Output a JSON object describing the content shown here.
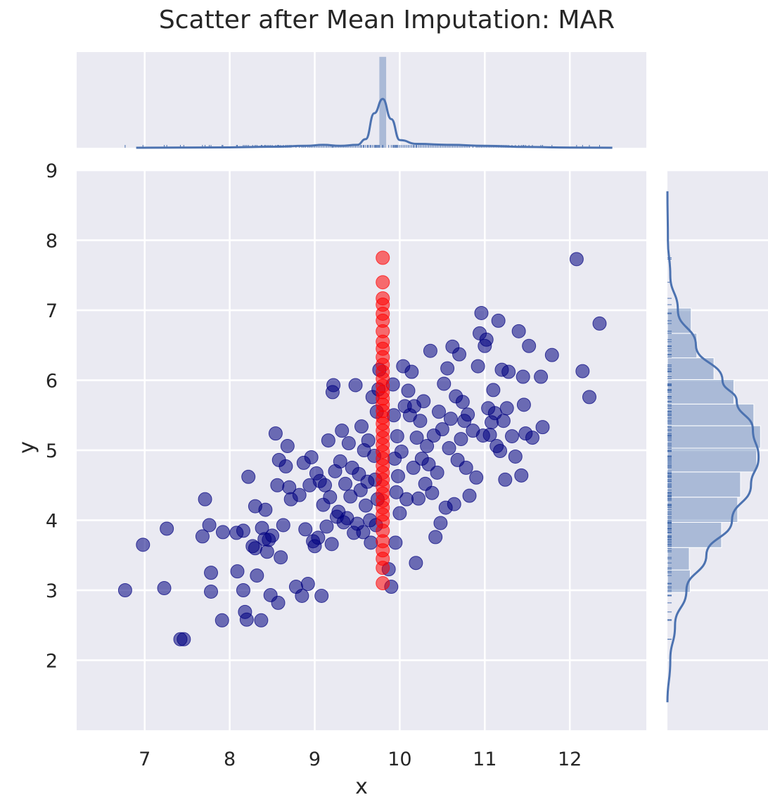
{
  "chart_data": {
    "type": "scatter",
    "title": "Scatter after Mean Imputation: MAR",
    "xlabel": "x",
    "ylabel": "y",
    "xlim": [
      6.2,
      12.9
    ],
    "ylim": [
      1.0,
      9.0
    ],
    "xticks": [
      7,
      8,
      9,
      10,
      11,
      12
    ],
    "yticks": [
      2,
      3,
      4,
      5,
      6,
      7,
      8,
      9
    ],
    "grid": true,
    "imputed_x": 9.8,
    "colors": {
      "observed": "#00007f",
      "imputed": "#ff0000",
      "marginal": "#4c72b0",
      "background": "#eaeaf2",
      "grid": "#ffffff"
    },
    "series": [
      {
        "role": "observed",
        "color": "#00007f",
        "points": [
          [
            6.77,
            3.0
          ],
          [
            6.98,
            3.65
          ],
          [
            7.23,
            3.03
          ],
          [
            7.26,
            3.88
          ],
          [
            7.42,
            2.3
          ],
          [
            7.46,
            2.3
          ],
          [
            7.68,
            3.77
          ],
          [
            7.71,
            4.3
          ],
          [
            7.76,
            3.93
          ],
          [
            7.78,
            3.25
          ],
          [
            7.78,
            2.98
          ],
          [
            7.91,
            2.57
          ],
          [
            7.92,
            3.83
          ],
          [
            8.08,
            3.82
          ],
          [
            8.09,
            3.27
          ],
          [
            8.16,
            3.85
          ],
          [
            8.16,
            3.0
          ],
          [
            8.18,
            2.69
          ],
          [
            8.2,
            2.58
          ],
          [
            8.22,
            4.62
          ],
          [
            8.27,
            3.63
          ],
          [
            8.3,
            3.6
          ],
          [
            8.3,
            4.2
          ],
          [
            8.32,
            3.21
          ],
          [
            8.37,
            2.57
          ],
          [
            8.38,
            3.89
          ],
          [
            8.41,
            3.73
          ],
          [
            8.42,
            4.15
          ],
          [
            8.44,
            3.55
          ],
          [
            8.46,
            3.72
          ],
          [
            8.48,
            2.93
          ],
          [
            8.5,
            3.78
          ],
          [
            8.54,
            5.24
          ],
          [
            8.56,
            4.5
          ],
          [
            8.57,
            2.82
          ],
          [
            8.58,
            4.86
          ],
          [
            8.6,
            3.47
          ],
          [
            8.63,
            3.93
          ],
          [
            8.66,
            4.77
          ],
          [
            8.68,
            5.06
          ],
          [
            8.7,
            4.47
          ],
          [
            8.72,
            4.3
          ],
          [
            8.78,
            3.05
          ],
          [
            8.82,
            4.36
          ],
          [
            8.85,
            2.92
          ],
          [
            8.87,
            4.82
          ],
          [
            8.89,
            3.87
          ],
          [
            8.92,
            3.09
          ],
          [
            8.94,
            4.5
          ],
          [
            8.96,
            4.9
          ],
          [
            8.98,
            3.7
          ],
          [
            9.0,
            3.63
          ],
          [
            9.02,
            4.67
          ],
          [
            9.04,
            3.75
          ],
          [
            9.06,
            4.56
          ],
          [
            9.08,
            2.92
          ],
          [
            9.1,
            4.22
          ],
          [
            9.12,
            4.5
          ],
          [
            9.14,
            3.91
          ],
          [
            9.16,
            5.14
          ],
          [
            9.18,
            4.33
          ],
          [
            9.2,
            3.66
          ],
          [
            9.21,
            5.83
          ],
          [
            9.22,
            5.93
          ],
          [
            9.24,
            4.7
          ],
          [
            9.26,
            4.05
          ],
          [
            9.28,
            4.12
          ],
          [
            9.3,
            4.84
          ],
          [
            9.32,
            5.28
          ],
          [
            9.34,
            3.97
          ],
          [
            9.36,
            4.52
          ],
          [
            9.38,
            4.03
          ],
          [
            9.4,
            5.1
          ],
          [
            9.42,
            4.34
          ],
          [
            9.44,
            4.75
          ],
          [
            9.46,
            3.82
          ],
          [
            9.48,
            5.93
          ],
          [
            9.5,
            3.95
          ],
          [
            9.52,
            4.66
          ],
          [
            9.54,
            4.43
          ],
          [
            9.55,
            5.34
          ],
          [
            9.57,
            3.83
          ],
          [
            9.58,
            5.0
          ],
          [
            9.6,
            4.21
          ],
          [
            9.62,
            4.55
          ],
          [
            9.63,
            5.14
          ],
          [
            9.65,
            4.0
          ],
          [
            9.66,
            3.68
          ],
          [
            9.68,
            5.76
          ],
          [
            9.7,
            4.92
          ],
          [
            9.71,
            4.58
          ],
          [
            9.72,
            3.93
          ],
          [
            9.73,
            5.55
          ],
          [
            9.74,
            4.3
          ],
          [
            9.75,
            5.87
          ],
          [
            9.76,
            6.15
          ],
          [
            9.87,
            3.3
          ],
          [
            9.9,
            3.05
          ],
          [
            9.92,
            5.94
          ],
          [
            9.93,
            5.5
          ],
          [
            9.94,
            4.88
          ],
          [
            9.95,
            3.68
          ],
          [
            9.96,
            4.4
          ],
          [
            9.97,
            5.2
          ],
          [
            9.98,
            4.63
          ],
          [
            10.0,
            4.1
          ],
          [
            10.02,
            4.98
          ],
          [
            10.04,
            6.2
          ],
          [
            10.06,
            5.63
          ],
          [
            10.08,
            4.3
          ],
          [
            10.1,
            5.85
          ],
          [
            10.12,
            5.5
          ],
          [
            10.14,
            6.12
          ],
          [
            10.16,
            4.75
          ],
          [
            10.17,
            5.63
          ],
          [
            10.19,
            3.39
          ],
          [
            10.2,
            5.18
          ],
          [
            10.22,
            4.31
          ],
          [
            10.24,
            5.42
          ],
          [
            10.26,
            4.88
          ],
          [
            10.28,
            5.7
          ],
          [
            10.3,
            4.52
          ],
          [
            10.32,
            5.06
          ],
          [
            10.34,
            4.8
          ],
          [
            10.36,
            6.42
          ],
          [
            10.38,
            4.39
          ],
          [
            10.4,
            5.21
          ],
          [
            10.42,
            3.76
          ],
          [
            10.44,
            4.68
          ],
          [
            10.46,
            5.55
          ],
          [
            10.48,
            3.96
          ],
          [
            10.5,
            5.3
          ],
          [
            10.52,
            5.95
          ],
          [
            10.54,
            4.18
          ],
          [
            10.56,
            6.17
          ],
          [
            10.58,
            5.03
          ],
          [
            10.6,
            5.45
          ],
          [
            10.62,
            6.48
          ],
          [
            10.64,
            4.23
          ],
          [
            10.66,
            5.77
          ],
          [
            10.68,
            4.86
          ],
          [
            10.7,
            6.37
          ],
          [
            10.72,
            5.16
          ],
          [
            10.74,
            5.69
          ],
          [
            10.76,
            5.42
          ],
          [
            10.78,
            4.75
          ],
          [
            10.8,
            5.51
          ],
          [
            10.82,
            4.35
          ],
          [
            10.86,
            5.28
          ],
          [
            10.9,
            4.61
          ],
          [
            10.92,
            6.2
          ],
          [
            10.94,
            6.67
          ],
          [
            10.96,
            6.96
          ],
          [
            10.98,
            5.21
          ],
          [
            11.0,
            6.49
          ],
          [
            11.02,
            6.58
          ],
          [
            11.04,
            5.6
          ],
          [
            11.06,
            5.22
          ],
          [
            11.08,
            5.4
          ],
          [
            11.1,
            5.86
          ],
          [
            11.12,
            5.53
          ],
          [
            11.14,
            5.06
          ],
          [
            11.16,
            6.85
          ],
          [
            11.18,
            4.99
          ],
          [
            11.2,
            6.15
          ],
          [
            11.22,
            5.42
          ],
          [
            11.24,
            4.58
          ],
          [
            11.26,
            5.6
          ],
          [
            11.28,
            6.12
          ],
          [
            11.32,
            5.2
          ],
          [
            11.36,
            4.91
          ],
          [
            11.4,
            6.7
          ],
          [
            11.43,
            4.64
          ],
          [
            11.45,
            6.05
          ],
          [
            11.46,
            5.65
          ],
          [
            11.48,
            5.24
          ],
          [
            11.52,
            6.49
          ],
          [
            11.56,
            5.18
          ],
          [
            11.66,
            6.05
          ],
          [
            11.68,
            5.33
          ],
          [
            11.79,
            6.36
          ],
          [
            12.08,
            7.73
          ],
          [
            12.15,
            6.13
          ],
          [
            12.23,
            5.76
          ],
          [
            12.35,
            6.81
          ]
        ]
      },
      {
        "role": "imputed",
        "color": "#ff0000",
        "points": [
          [
            9.8,
            7.75
          ],
          [
            9.8,
            7.4
          ],
          [
            9.8,
            7.17
          ],
          [
            9.8,
            7.08
          ],
          [
            9.8,
            6.95
          ],
          [
            9.8,
            6.85
          ],
          [
            9.8,
            6.7
          ],
          [
            9.8,
            6.55
          ],
          [
            9.8,
            6.45
          ],
          [
            9.8,
            6.33
          ],
          [
            9.8,
            6.22
          ],
          [
            9.8,
            6.12
          ],
          [
            9.8,
            6.02
          ],
          [
            9.8,
            5.92
          ],
          [
            9.8,
            5.83
          ],
          [
            9.8,
            5.74
          ],
          [
            9.8,
            5.65
          ],
          [
            9.8,
            5.56
          ],
          [
            9.8,
            5.47
          ],
          [
            9.8,
            5.38
          ],
          [
            9.8,
            5.28
          ],
          [
            9.8,
            5.18
          ],
          [
            9.8,
            5.08
          ],
          [
            9.8,
            4.98
          ],
          [
            9.8,
            4.88
          ],
          [
            9.8,
            4.78
          ],
          [
            9.8,
            4.68
          ],
          [
            9.8,
            4.58
          ],
          [
            9.8,
            4.48
          ],
          [
            9.8,
            4.38
          ],
          [
            9.8,
            4.28
          ],
          [
            9.8,
            4.18
          ],
          [
            9.8,
            4.08
          ],
          [
            9.8,
            3.98
          ],
          [
            9.8,
            3.85
          ],
          [
            9.8,
            3.7
          ],
          [
            9.8,
            3.57
          ],
          [
            9.8,
            3.45
          ],
          [
            9.8,
            3.32
          ],
          [
            9.8,
            3.1
          ]
        ]
      }
    ],
    "marginal_x": {
      "type": "histogram+kde",
      "peak_x": 9.8,
      "kde": [
        [
          6.9,
          0.0
        ],
        [
          7.5,
          0.002
        ],
        [
          8.0,
          0.004
        ],
        [
          8.5,
          0.01
        ],
        [
          8.9,
          0.02
        ],
        [
          9.1,
          0.03
        ],
        [
          9.3,
          0.02
        ],
        [
          9.5,
          0.03
        ],
        [
          9.6,
          0.09
        ],
        [
          9.7,
          0.36
        ],
        [
          9.8,
          0.51
        ],
        [
          9.9,
          0.3
        ],
        [
          10.0,
          0.08
        ],
        [
          10.2,
          0.04
        ],
        [
          10.6,
          0.03
        ],
        [
          11.0,
          0.02
        ],
        [
          11.5,
          0.008
        ],
        [
          12.0,
          0.002
        ],
        [
          12.5,
          0.0
        ]
      ],
      "bars": [
        [
          9.76,
          9.84,
          0.95
        ]
      ]
    },
    "marginal_y": {
      "type": "histogram+kde",
      "kde": [
        [
          1.4,
          0.0
        ],
        [
          2.0,
          0.03
        ],
        [
          2.5,
          0.08
        ],
        [
          3.0,
          0.2
        ],
        [
          3.5,
          0.41
        ],
        [
          4.0,
          0.68
        ],
        [
          4.5,
          0.88
        ],
        [
          4.9,
          0.96
        ],
        [
          5.3,
          0.9
        ],
        [
          5.7,
          0.73
        ],
        [
          6.0,
          0.58
        ],
        [
          6.5,
          0.3
        ],
        [
          7.0,
          0.11
        ],
        [
          7.5,
          0.03
        ],
        [
          8.0,
          0.005
        ],
        [
          8.7,
          0.0
        ]
      ],
      "bars": [
        [
          2.97,
          3.29,
          0.24
        ],
        [
          3.29,
          3.61,
          0.23
        ],
        [
          3.61,
          3.97,
          0.57
        ],
        [
          3.97,
          4.33,
          0.74
        ],
        [
          4.33,
          4.69,
          0.77
        ],
        [
          4.69,
          5.03,
          0.94
        ],
        [
          5.03,
          5.35,
          0.98
        ],
        [
          5.35,
          5.66,
          0.91
        ],
        [
          5.66,
          6.01,
          0.7
        ],
        [
          6.01,
          6.32,
          0.49
        ],
        [
          6.32,
          6.67,
          0.31
        ],
        [
          6.67,
          7.03,
          0.25
        ]
      ]
    }
  }
}
